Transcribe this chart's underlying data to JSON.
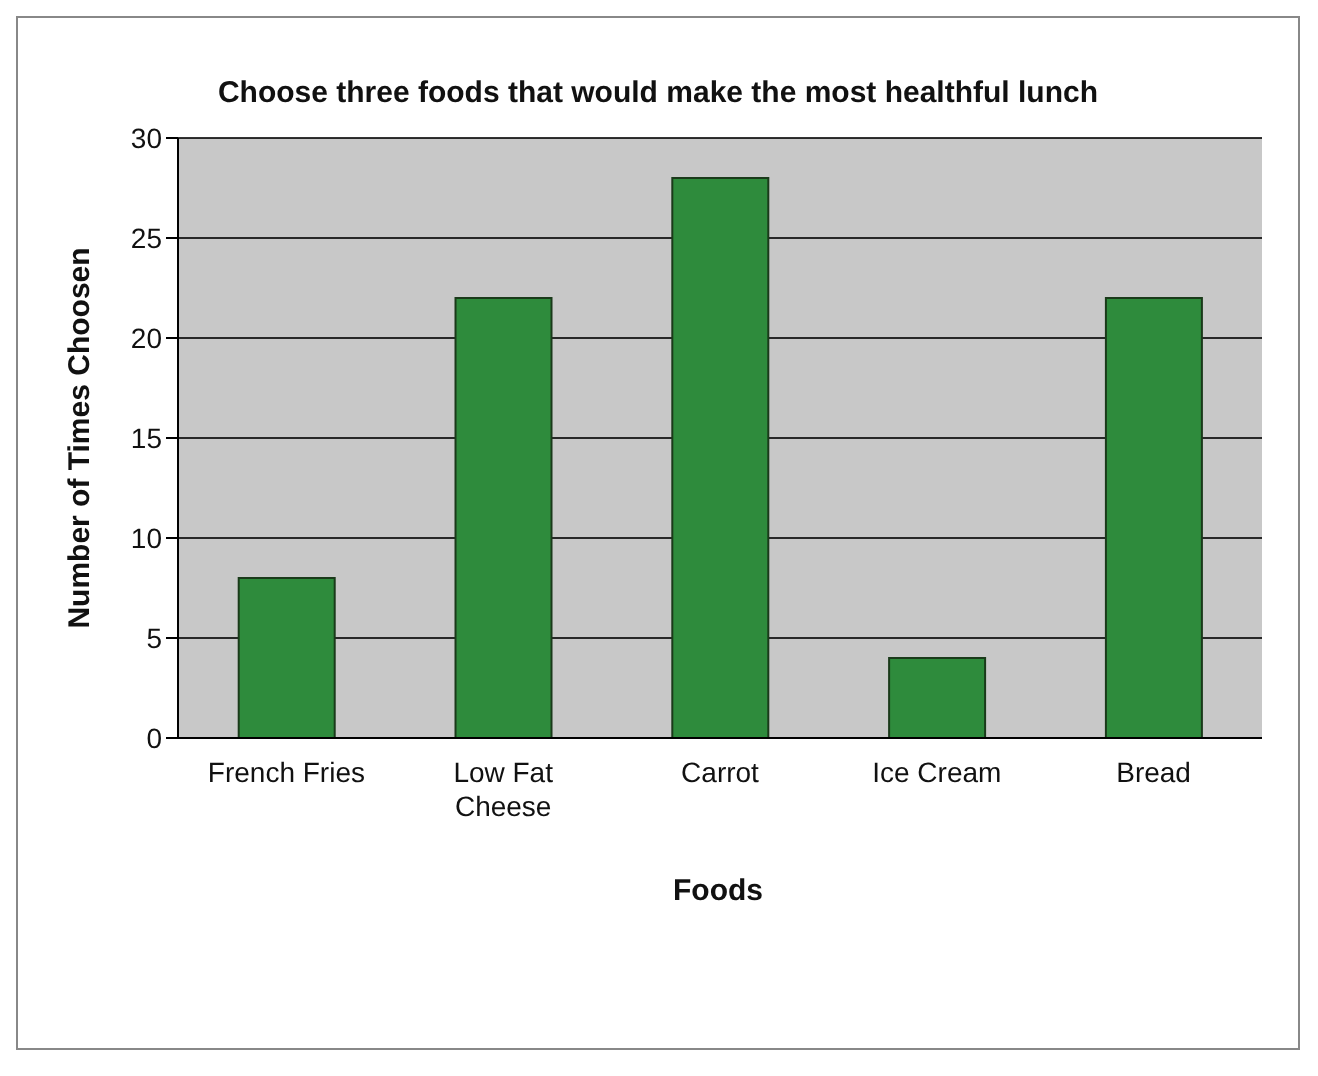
{
  "chart_data": {
    "type": "bar",
    "title": "Choose three foods that would make the most healthful lunch",
    "xlabel": "Foods",
    "ylabel": "Number of Times Choosen",
    "categories": [
      "French Fries",
      "Low Fat Cheese",
      "Carrot",
      "Ice Cream",
      "Bread"
    ],
    "values": [
      8,
      22,
      28,
      4,
      22
    ],
    "color": "#2e8b3c",
    "ylim": [
      0,
      30
    ],
    "yticks": [
      0,
      5,
      10,
      15,
      20,
      25,
      30
    ],
    "grid": "y",
    "legend": false
  }
}
